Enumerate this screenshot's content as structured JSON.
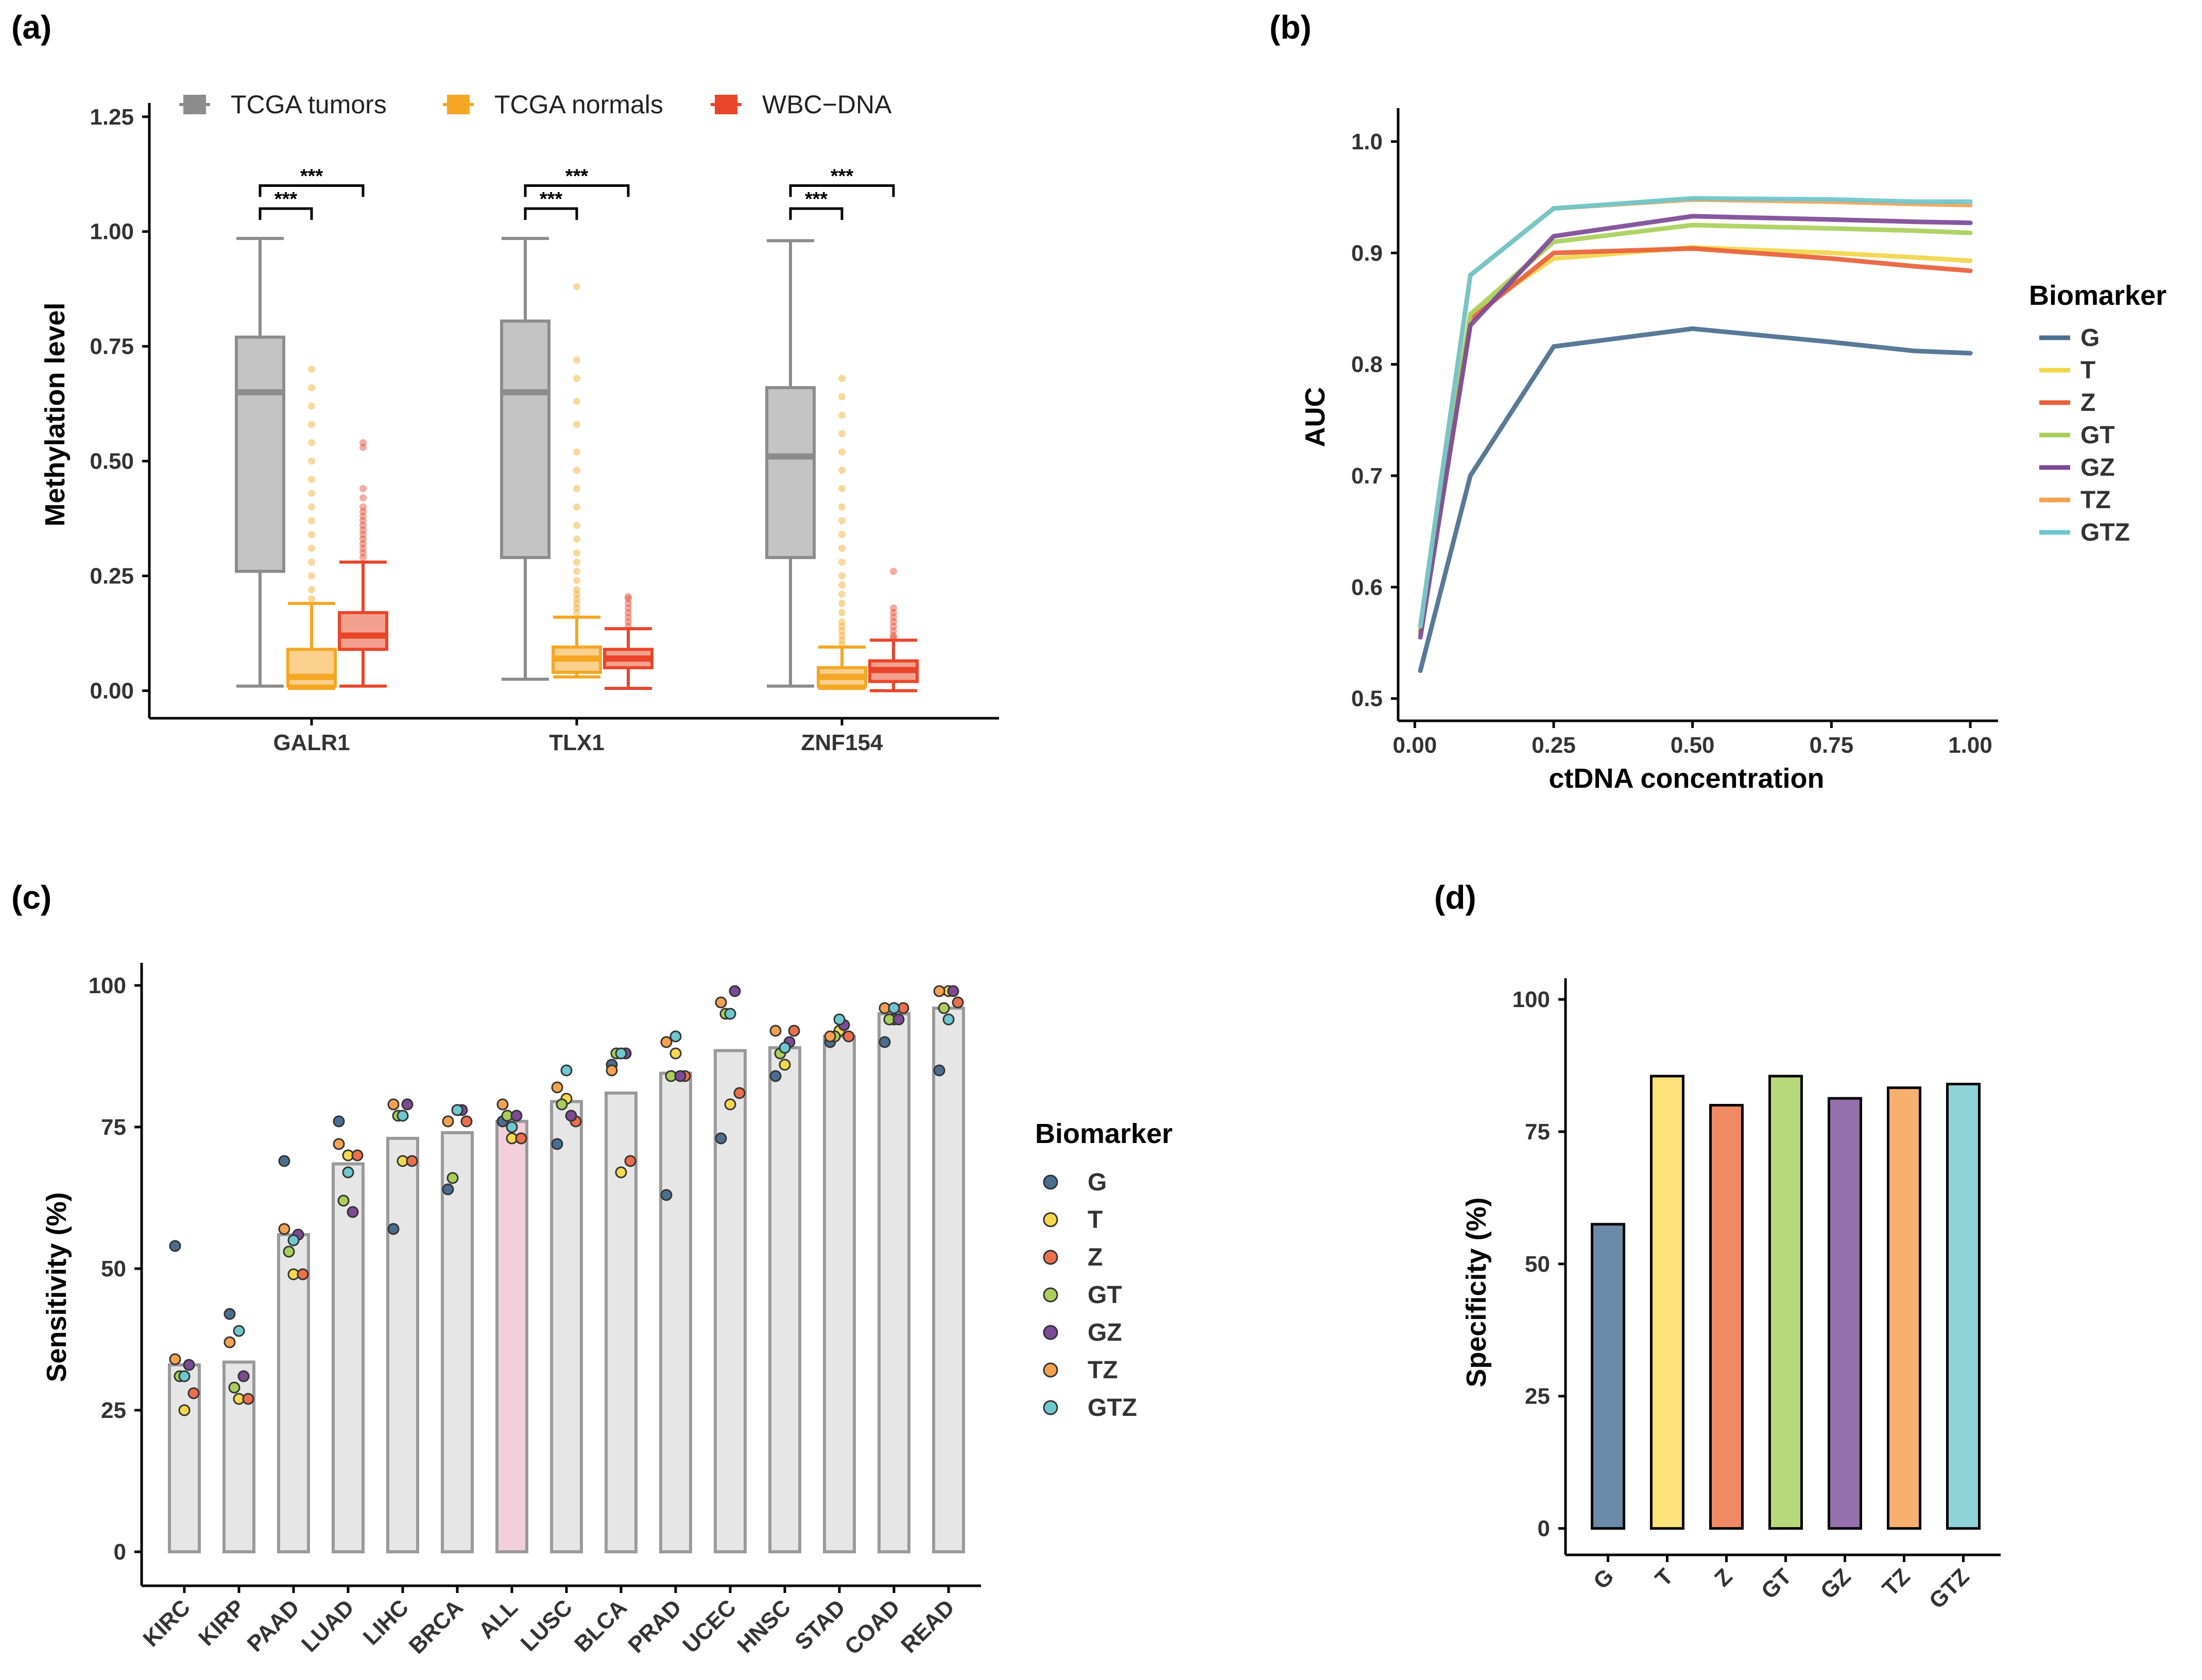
{
  "panel_labels": {
    "a": "(a)",
    "b": "(b)",
    "c": "(c)",
    "d": "(d)"
  },
  "chart_data": [
    {
      "id": "a",
      "type": "box",
      "title": "",
      "xlabel": "",
      "ylabel": "Methylation level",
      "ylim": [
        -0.06,
        1.28
      ],
      "yticks": [
        0.0,
        0.25,
        0.5,
        0.75,
        1.0,
        1.25
      ],
      "ytick_labels": [
        "0.00",
        "0.25",
        "0.50",
        "0.75",
        "1.00",
        "1.25"
      ],
      "categories": [
        "GALR1",
        "TLX1",
        "ZNF154"
      ],
      "legend": [
        "TCGA tumors",
        "TCGA normals",
        "WBC−DNA"
      ],
      "colors": {
        "TCGA tumors": "#8c8c8c",
        "TCGA normals": "#f5a623",
        "WBC−DNA": "#e8452a"
      },
      "fills": {
        "TCGA tumors": "#c4c4c4",
        "TCGA normals": "#fbd08c",
        "WBC−DNA": "#f4a08e"
      },
      "significance": "***",
      "boxes": [
        {
          "category": "GALR1",
          "group": "TCGA tumors",
          "whisker_low": 0.01,
          "q1": 0.26,
          "median": 0.65,
          "q3": 0.77,
          "whisker_high": 0.985,
          "outliers": []
        },
        {
          "category": "GALR1",
          "group": "TCGA normals",
          "whisker_low": 0.005,
          "q1": 0.01,
          "median": 0.03,
          "q3": 0.09,
          "whisker_high": 0.19,
          "outliers": [
            0.2,
            0.22,
            0.25,
            0.28,
            0.31,
            0.34,
            0.37,
            0.4,
            0.43,
            0.46,
            0.5,
            0.54,
            0.58,
            0.62,
            0.66,
            0.7
          ]
        },
        {
          "category": "GALR1",
          "group": "WBC−DNA",
          "whisker_low": 0.01,
          "q1": 0.09,
          "median": 0.12,
          "q3": 0.17,
          "whisker_high": 0.28,
          "outliers": [
            0.29,
            0.3,
            0.31,
            0.32,
            0.33,
            0.34,
            0.35,
            0.36,
            0.37,
            0.38,
            0.39,
            0.4,
            0.42,
            0.44,
            0.53,
            0.54
          ]
        },
        {
          "category": "TLX1",
          "group": "TCGA tumors",
          "whisker_low": 0.025,
          "q1": 0.29,
          "median": 0.65,
          "q3": 0.805,
          "whisker_high": 0.985,
          "outliers": []
        },
        {
          "category": "TLX1",
          "group": "TCGA normals",
          "whisker_low": 0.03,
          "q1": 0.04,
          "median": 0.07,
          "q3": 0.095,
          "whisker_high": 0.16,
          "outliers": [
            0.17,
            0.18,
            0.19,
            0.2,
            0.21,
            0.22,
            0.24,
            0.26,
            0.28,
            0.3,
            0.33,
            0.36,
            0.4,
            0.44,
            0.48,
            0.52,
            0.58,
            0.63,
            0.68,
            0.72,
            0.88
          ]
        },
        {
          "category": "TLX1",
          "group": "WBC−DNA",
          "whisker_low": 0.005,
          "q1": 0.05,
          "median": 0.07,
          "q3": 0.09,
          "whisker_high": 0.135,
          "outliers": [
            0.14,
            0.15,
            0.16,
            0.17,
            0.18,
            0.19,
            0.2,
            0.205
          ]
        },
        {
          "category": "ZNF154",
          "group": "TCGA tumors",
          "whisker_low": 0.01,
          "q1": 0.29,
          "median": 0.51,
          "q3": 0.66,
          "whisker_high": 0.98,
          "outliers": []
        },
        {
          "category": "ZNF154",
          "group": "TCGA normals",
          "whisker_low": 0.005,
          "q1": 0.01,
          "median": 0.03,
          "q3": 0.05,
          "whisker_high": 0.095,
          "outliers": [
            0.1,
            0.11,
            0.12,
            0.13,
            0.14,
            0.15,
            0.17,
            0.19,
            0.21,
            0.23,
            0.25,
            0.28,
            0.31,
            0.34,
            0.37,
            0.4,
            0.44,
            0.48,
            0.52,
            0.56,
            0.6,
            0.64,
            0.68
          ]
        },
        {
          "category": "ZNF154",
          "group": "WBC−DNA",
          "whisker_low": 0.0,
          "q1": 0.02,
          "median": 0.045,
          "q3": 0.065,
          "whisker_high": 0.11,
          "outliers": [
            0.115,
            0.12,
            0.13,
            0.14,
            0.15,
            0.16,
            0.17,
            0.18,
            0.26
          ]
        }
      ]
    },
    {
      "id": "b",
      "type": "line",
      "title": "",
      "xlabel": "ctDNA concentration",
      "ylabel": "AUC",
      "xlim": [
        -0.03,
        1.05
      ],
      "ylim": [
        0.48,
        1.03
      ],
      "xticks": [
        0.0,
        0.25,
        0.5,
        0.75,
        1.0
      ],
      "xtick_labels": [
        "0.00",
        "0.25",
        "0.50",
        "0.75",
        "1.00"
      ],
      "yticks": [
        0.5,
        0.6,
        0.7,
        0.8,
        0.9,
        1.0
      ],
      "ytick_labels": [
        "0.5",
        "0.6",
        "0.7",
        "0.8",
        "0.9",
        "1.0"
      ],
      "legend_title": "Biomarker",
      "x": [
        0.01,
        0.1,
        0.25,
        0.5,
        0.75,
        0.9,
        1.0
      ],
      "series": [
        {
          "name": "G",
          "color": "#4a6e8f",
          "values": [
            0.525,
            0.7,
            0.816,
            0.832,
            0.82,
            0.812,
            0.81
          ]
        },
        {
          "name": "T",
          "color": "#f2d64b",
          "values": [
            0.56,
            0.845,
            0.895,
            0.905,
            0.9,
            0.896,
            0.893
          ]
        },
        {
          "name": "Z",
          "color": "#e8613a",
          "values": [
            0.56,
            0.84,
            0.9,
            0.904,
            0.895,
            0.888,
            0.884
          ]
        },
        {
          "name": "GT",
          "color": "#a9cf5a",
          "values": [
            0.56,
            0.845,
            0.91,
            0.925,
            0.922,
            0.92,
            0.918
          ]
        },
        {
          "name": "GZ",
          "color": "#7d4a96",
          "values": [
            0.555,
            0.835,
            0.915,
            0.933,
            0.93,
            0.928,
            0.927
          ]
        },
        {
          "name": "TZ",
          "color": "#f5a14f",
          "values": [
            0.565,
            0.88,
            0.94,
            0.948,
            0.946,
            0.944,
            0.943
          ]
        },
        {
          "name": "GTZ",
          "color": "#6dc8cf",
          "values": [
            0.565,
            0.88,
            0.94,
            0.949,
            0.948,
            0.946,
            0.946
          ]
        }
      ]
    },
    {
      "id": "c",
      "type": "bar",
      "title": "",
      "xlabel": "",
      "ylabel": "Sensitivity (%)",
      "ylim": [
        -6,
        104
      ],
      "yticks": [
        0,
        25,
        50,
        75,
        100
      ],
      "ytick_labels": [
        "0",
        "25",
        "50",
        "75",
        "100"
      ],
      "legend_title": "Biomarker",
      "legend": [
        {
          "name": "G",
          "color": "#4a6e8f"
        },
        {
          "name": "T",
          "color": "#f7d84c"
        },
        {
          "name": "Z",
          "color": "#ec6f4b"
        },
        {
          "name": "GT",
          "color": "#a9cf5a"
        },
        {
          "name": "GZ",
          "color": "#7d4a96"
        },
        {
          "name": "TZ",
          "color": "#f5a14f"
        },
        {
          "name": "GTZ",
          "color": "#6dc8cf"
        }
      ],
      "categories": [
        "KIRC",
        "KIRP",
        "PAAD",
        "LUAD",
        "LIHC",
        "BRCA",
        "ALL",
        "LUSC",
        "BLCA",
        "PRAD",
        "UCEC",
        "HNSC",
        "STAD",
        "COAD",
        "READ"
      ],
      "values": [
        33,
        33.5,
        56,
        68.5,
        73,
        74,
        76,
        79.5,
        81,
        84.5,
        88.5,
        89,
        91,
        95,
        96
      ],
      "highlight": "ALL",
      "points": {
        "KIRC": [
          54,
          25,
          28,
          31,
          33,
          34,
          31
        ],
        "KIRP": [
          42,
          27,
          27,
          29,
          31,
          37,
          39
        ],
        "PAAD": [
          69,
          49,
          49,
          53,
          56,
          57,
          55
        ],
        "LUAD": [
          76,
          70,
          70,
          62,
          60,
          72,
          67
        ],
        "LIHC": [
          57,
          69,
          69,
          77,
          79,
          79,
          77
        ],
        "BRCA": [
          64,
          78,
          76,
          66,
          78,
          76,
          78
        ],
        "ALL": [
          76,
          73,
          73,
          77,
          77,
          79,
          75
        ],
        "LUSC": [
          72,
          80,
          76,
          79,
          77,
          82,
          85
        ],
        "BLCA": [
          86,
          67,
          69,
          88,
          88,
          85,
          88
        ],
        "PRAD": [
          63,
          88,
          84,
          84,
          84,
          90,
          91
        ],
        "UCEC": [
          73,
          79,
          81,
          95,
          99,
          97,
          95
        ],
        "HNSC": [
          84,
          86,
          92,
          88,
          90,
          92,
          89
        ],
        "STAD": [
          90,
          92,
          91,
          91,
          93,
          91,
          94
        ],
        "COAD": [
          90,
          94,
          96,
          94,
          94,
          96,
          96
        ],
        "READ": [
          85,
          99,
          97,
          96,
          99,
          99,
          94
        ]
      }
    },
    {
      "id": "d",
      "type": "bar",
      "title": "",
      "xlabel": "",
      "ylabel": "Specificity (%)",
      "ylim": [
        -5,
        104
      ],
      "yticks": [
        0,
        25,
        50,
        75,
        100
      ],
      "ytick_labels": [
        "0",
        "25",
        "50",
        "75",
        "100"
      ],
      "categories": [
        "G",
        "T",
        "Z",
        "GT",
        "GZ",
        "TZ",
        "GTZ"
      ],
      "values": [
        57.5,
        85.5,
        80,
        85.5,
        81.3,
        83.3,
        84
      ],
      "colors": [
        "#6b8ba8",
        "#fde27a",
        "#ef8a64",
        "#b8d97a",
        "#9570ad",
        "#f8b06e",
        "#8fd2d7"
      ]
    }
  ]
}
